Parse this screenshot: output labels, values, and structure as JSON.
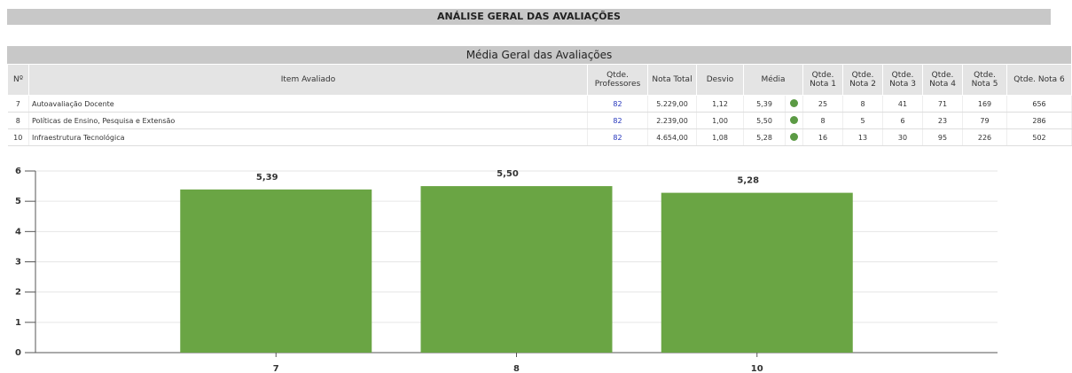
{
  "header": {
    "title": "ANÁLISE GERAL DAS AVALIAÇÕES"
  },
  "table": {
    "title": "Média Geral das Avaliações",
    "headers": [
      "Nº",
      "Item Avaliado",
      "Qtde. Professores",
      "Nota Total",
      "Desvio",
      "Média",
      "Qtde. Nota 1",
      "Qtde. Nota 2",
      "Qtde. Nota 3",
      "Qtde. Nota 4",
      "Qtde. Nota 5",
      "Qtde. Nota 6"
    ],
    "rows": [
      [
        "7",
        "Autoavaliação Docente",
        "82",
        "5.229,00",
        "1,12",
        "5,39",
        "25",
        "8",
        "41",
        "71",
        "169",
        "656"
      ],
      [
        "8",
        "Políticas de Ensino, Pesquisa e Extensão",
        "82",
        "2.239,00",
        "1,00",
        "5,50",
        "8",
        "5",
        "6",
        "23",
        "79",
        "286"
      ],
      [
        "10",
        "Infraestrutura Tecnológica",
        "82",
        "4.654,00",
        "1,08",
        "5,28",
        "16",
        "13",
        "30",
        "95",
        "226",
        "502"
      ]
    ]
  },
  "chart_data": {
    "type": "bar",
    "categories": [
      "7",
      "8",
      "10"
    ],
    "values": [
      5.39,
      5.5,
      5.28
    ],
    "value_labels": [
      "5,39",
      "5,50",
      "5,28"
    ],
    "color": "#6aa544",
    "ylim": [
      0,
      6
    ],
    "yticks": [
      0,
      1,
      2,
      3,
      4,
      5,
      6
    ],
    "grid": true
  }
}
